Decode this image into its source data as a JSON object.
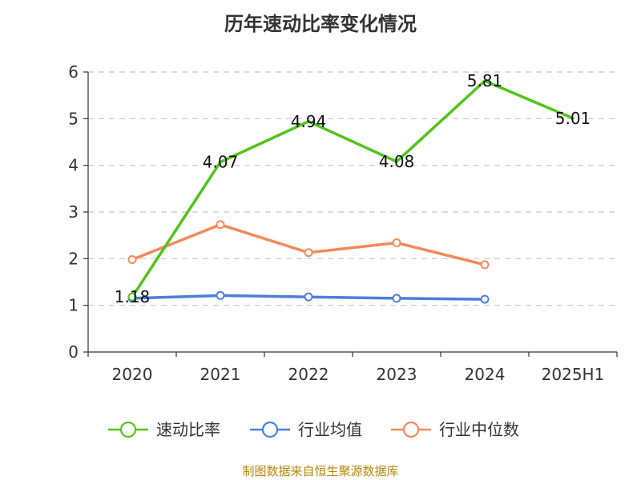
{
  "title": "历年速动比率变化情况",
  "source": "制图数据来自恒生聚源数据库",
  "chart_data": {
    "type": "line",
    "title": "历年速动比率变化情况",
    "categories": [
      "2020",
      "2021",
      "2022",
      "2023",
      "2024",
      "2025H1"
    ],
    "ylim": [
      0,
      6
    ],
    "yticks": [
      0,
      1,
      2,
      3,
      4,
      5,
      6
    ],
    "grid": true,
    "legend_position": "bottom",
    "series": [
      {
        "name": "速动比率",
        "color": "#52c41a",
        "values": [
          1.18,
          4.07,
          4.94,
          4.08,
          5.81,
          5.01
        ],
        "labels": [
          "1.18",
          "4.07",
          "4.94",
          "4.08",
          "5.81",
          "5.01"
        ]
      },
      {
        "name": "行业均值",
        "color": "#4a7fdc",
        "values": [
          1.15,
          1.21,
          1.18,
          1.15,
          1.13,
          null
        ]
      },
      {
        "name": "行业中位数",
        "color": "#f5895a",
        "values": [
          1.98,
          2.73,
          2.13,
          2.34,
          1.87,
          null
        ]
      }
    ]
  }
}
